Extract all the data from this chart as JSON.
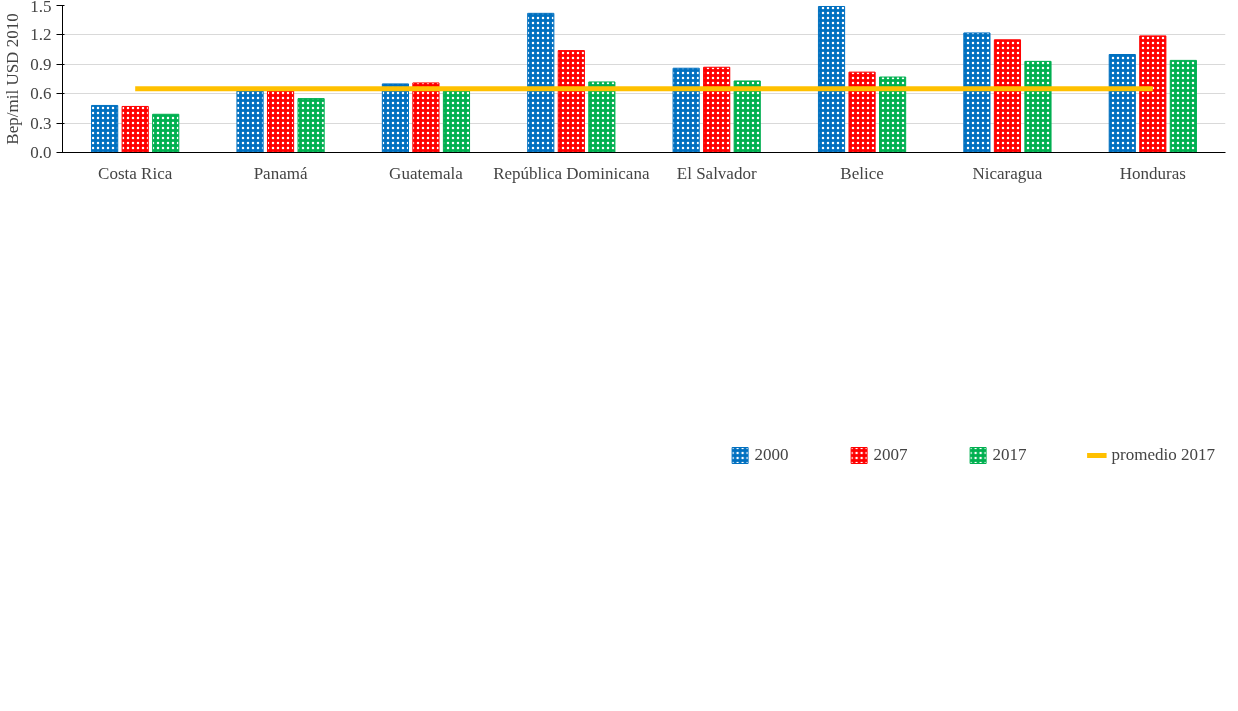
{
  "chart_data": {
    "type": "bar",
    "ylabel": "Bep/mil USD 2010",
    "categories": [
      "Costa Rica",
      "Panamá",
      "Guatemala",
      "República Dominicana",
      "El Salvador",
      "Belice",
      "Nicaragua",
      "Honduras"
    ],
    "series": [
      {
        "name": "2000",
        "color": "#0070c0",
        "values": [
          0.48,
          0.63,
          0.7,
          1.42,
          0.86,
          1.49,
          1.22,
          1.0
        ]
      },
      {
        "name": "2007",
        "color": "#ff0000",
        "values": [
          0.47,
          0.65,
          0.71,
          1.04,
          0.87,
          0.82,
          1.15,
          1.19
        ]
      },
      {
        "name": "2017",
        "color": "#00b050",
        "values": [
          0.39,
          0.55,
          0.64,
          0.72,
          0.73,
          0.77,
          0.93,
          0.94
        ]
      },
      {
        "name": "promedio 2017",
        "type": "line",
        "color": "#ffc000",
        "values": [
          0.65,
          0.65,
          0.65,
          0.65,
          0.65,
          0.65,
          0.65,
          0.65
        ]
      }
    ],
    "ylim": [
      0,
      1.5
    ],
    "yticks": [
      {
        "value": 0,
        "label": "0.0"
      },
      0.3,
      0.6,
      0.9,
      1.2,
      1.5
    ],
    "grid": "y",
    "legend": "bottom"
  }
}
